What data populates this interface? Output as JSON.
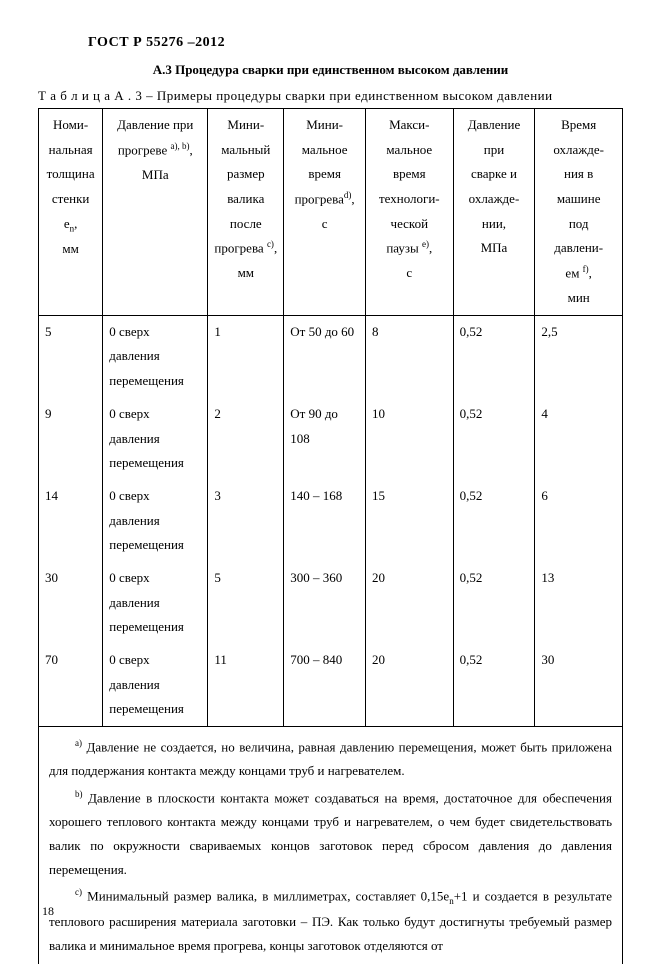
{
  "doc_id": "ГОСТ   Р   55276 –2012",
  "section_title": "А.3 Процедура сварки при единственном высоком давлении",
  "table_caption": "Т а б л и ц а   А . 3  – Примеры процедуры сварки при единственном высоком давлении",
  "headers": {
    "c1a": "Номи-",
    "c1b": "нальная",
    "c1c": "толщина",
    "c1d": "стенки e",
    "c1e": "мм",
    "c2a": "Давление при",
    "c2b": "прогреве ",
    "c2c": "МПа",
    "c3a": "Мини-",
    "c3b": "мальный",
    "c3c": "размер",
    "c3d": "валика",
    "c3e": "после",
    "c3f": "прогрева ",
    "c3g": "мм",
    "c4a": "Мини-",
    "c4b": "мальное",
    "c4c": "время",
    "c4d": "прогрева",
    "c4e": "с",
    "c5a": "Макси-",
    "c5b": "мальное",
    "c5c": "время",
    "c5d": "технологи-",
    "c5e": "ческой",
    "c5f": "паузы ",
    "c5g": "с",
    "c6a": "Давление",
    "c6b": "при",
    "c6c": "сварке и",
    "c6d": "охлажде-",
    "c6e": "нии,",
    "c6f": "МПа",
    "c7a": "Время",
    "c7b": "охлажде-",
    "c7c": "ния  в",
    "c7d": "машине",
    "c7e": "под",
    "c7f": "давлени-",
    "c7g": "ем ",
    "c7h": "мин"
  },
  "sup": {
    "ab": "a), b)",
    "c": "c)",
    "d": "d)",
    "e": "e)",
    "f": "f)"
  },
  "sub": {
    "n": "n"
  },
  "rows": [
    {
      "t": "5",
      "p": "0 сверх давления перемещения",
      "b": "1",
      "h": "От  50 до 60",
      "pa": "8",
      "pr": "0,52",
      "ct": "2,5"
    },
    {
      "t": "9",
      "p": "0 сверх давления перемещения",
      "b": "2",
      "h": "От 90 до 108",
      "pa": "10",
      "pr": "0,52",
      "ct": "4"
    },
    {
      "t": "14",
      "p": "0 сверх давления перемещения",
      "b": "3",
      "h": "140 – 168",
      "pa": "15",
      "pr": "0,52",
      "ct": "6"
    },
    {
      "t": "30",
      "p": "0 сверх давления перемещения",
      "b": "5",
      "h": "300 – 360",
      "pa": "20",
      "pr": "0,52",
      "ct": "13"
    },
    {
      "t": "70",
      "p": "0 сверх давления перемещения",
      "b": "11",
      "h": "700 – 840",
      "pa": "20",
      "pr": "0,52",
      "ct": "30"
    }
  ],
  "notes": {
    "a": " Давление не создается, но величина, равная давлению перемещения, может быть приложена для поддержания контакта между концами труб и нагревателем.",
    "b": " Давление в плоскости контакта может создаваться на время, достаточное для обеспечения хорошего теплового контакта между концами труб и нагревателем, о чем будет свидетельствовать валик по окружности свариваемых концов заготовок перед сбросом давления до давления перемещения.",
    "c1": " Минимальный размер валика, в миллиметрах, составляет 0,15e",
    "c2": "+1 и создается в результате теплового расширения материала заготовки – ПЭ. Как только будут достигнуты требуемый размер валика и минимальное время прогрева, концы заготовок отделяются от"
  },
  "note_marks": {
    "a": "a)",
    "b": "b)",
    "c": "c)"
  },
  "page_number": "18"
}
